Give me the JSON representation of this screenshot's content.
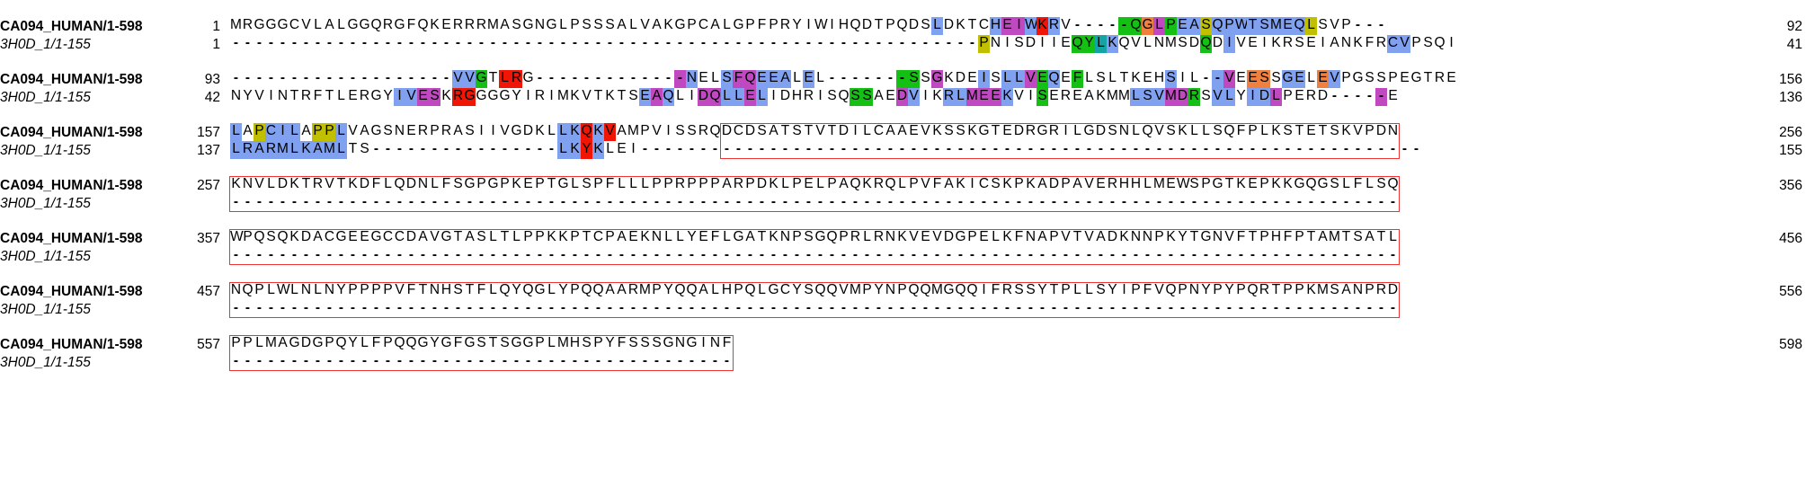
{
  "colors": {
    "b": "#80a0f0",
    "r": "#f01505",
    "g": "#15c015",
    "m": "#c048c0",
    "y": "#c0c000",
    "o": "#f08040",
    "c": "#15a4a4",
    "box": "#ee3333"
  },
  "blocks": [
    {
      "seq1": {
        "name": "CA094_HUMAN/1-598",
        "start": "1",
        "end": "92",
        "residues": "MRGGGCVLALGGQRGFQKERRRMASGNGLPSSSALVAKGPCALGPFPRYIWIHQDTPQDSLDKTCHEIWKRV-----QGLPEASQPWTSMEQLSVP---",
        "colors": "............................................................b....bmmbrb.....ggomgbbybbbbbbbby..."
      },
      "seq2": {
        "name": "3H0D_1/1-155",
        "start": "1",
        "end": "41",
        "residues": "----------------------------------------------------------------PNISDIIEQYLKQVLNMSDQDIVEIKRSEIANKFRCVPSQI",
        "colors": "................................................................y.......ggcb.......g.b.............bb....."
      },
      "boxes": []
    },
    {
      "seq1": {
        "name": "CA094_HUMAN/1-598",
        "start": "93",
        "end": "156",
        "residues": "-------------------VVGTLRG-------------NELSFQEEALEL-------SSGKDEISLLVEQEFLSLTKEHSIL--VEESSGELEVPGSSPEGTRE",
        "colors": "...................bbg.rr.............mb..bmmbbb.b.......gg.m...b.bbmgb.g.......b...bm.oo.bb.ob..........m"
      },
      "seq2": {
        "name": "3H0D_1/1-155",
        "start": "42",
        "end": "136",
        "residues": "NYVINTRFTLERGYIVESKRGGGGYIRIMKVTKTSEAQLIDQLLELIDHRISQSSAEDVIKRLMEEKVISEREAKMMLSVMDRSVLYIDLPERD-----E",
        "colors": "..............bbmm.rr..............bmb..mmbbmb.......gg..mb..bbmmmb..g.......bbbmmg.bb.bbm........m"
      },
      "boxes": []
    },
    {
      "seq1": {
        "name": "CA094_HUMAN/1-598",
        "start": "157",
        "end": "256",
        "residues": "LAPCILAPPLVAGSNERPRASIIVGDKLLKQKVAMPVISSRQDCDSATSTVTDILCAAEVKSSKGTEDRGRILGDSNLQVSKLLSQFPLKSTETSKVPDN",
        "colors": "b.ybbb.yyb..................bbrbr....................................................................."
      },
      "seq2": {
        "name": "3H0D_1/1-155",
        "start": "137",
        "end": "155",
        "residues": "LRARMLKAMLTS----------------LKYKLEI-------------------------------------------------------------------",
        "colors": "bbbbbbbbbb..................bbrb....................................................................."
      },
      "boxes": [
        {
          "from": 42,
          "to": 99
        }
      ]
    },
    {
      "seq1": {
        "name": "CA094_HUMAN/1-598",
        "start": "257",
        "end": "356",
        "residues": "KNVLDKTRVTKDFLQDNLFSGPGPKEPTGLSPFLLLPPRPPPARPDKLPELPAQKRQLPVFAKICSKPKADPAVERHHLMEWSPGTKEPKKGQGSLFLSQ",
        "colors": ""
      },
      "seq2": {
        "name": "3H0D_1/1-155",
        "start": "",
        "end": "",
        "residues": "----------------------------------------------------------------------------------------------------",
        "colors": ""
      },
      "boxes": [
        {
          "from": 0,
          "to": 99
        }
      ]
    },
    {
      "seq1": {
        "name": "CA094_HUMAN/1-598",
        "start": "357",
        "end": "456",
        "residues": "WPQSQKDACGEEGCCDAVGTASLTLPPKKPTCPAEKNLLYEFLGATKNPSGQPRLRNKVEVDGPELKFNAPVTVADKNNPKYTGNVFTPHFPTAMTSATL",
        "colors": ""
      },
      "seq2": {
        "name": "3H0D_1/1-155",
        "start": "",
        "end": "",
        "residues": "----------------------------------------------------------------------------------------------------",
        "colors": ""
      },
      "boxes": [
        {
          "from": 0,
          "to": 99
        }
      ]
    },
    {
      "seq1": {
        "name": "CA094_HUMAN/1-598",
        "start": "457",
        "end": "556",
        "residues": "NQPLWLNLNYPPPPVFTNHSTFLQYQGLYPQQAARMPYQQALHPQLGCYSQQVMPYNPQQMGQQIFRSSYTPLLSYIPFVQPNYPYPQRTPPKMSANPRD",
        "colors": ""
      },
      "seq2": {
        "name": "3H0D_1/1-155",
        "start": "",
        "end": "",
        "residues": "----------------------------------------------------------------------------------------------------",
        "colors": ""
      },
      "boxes": [
        {
          "from": 0,
          "to": 99
        }
      ]
    },
    {
      "seq1": {
        "name": "CA094_HUMAN/1-598",
        "start": "557",
        "end": "598",
        "residues": "PPLMAGDGPQYLFPQQGYGFGSTSGGPLMHSPYFSSSGNGINF",
        "colors": ""
      },
      "seq2": {
        "name": "3H0D_1/1-155",
        "start": "",
        "end": "",
        "residues": "-------------------------------------------",
        "colors": ""
      },
      "boxes": [
        {
          "from": 0,
          "to": 42
        }
      ]
    }
  ]
}
